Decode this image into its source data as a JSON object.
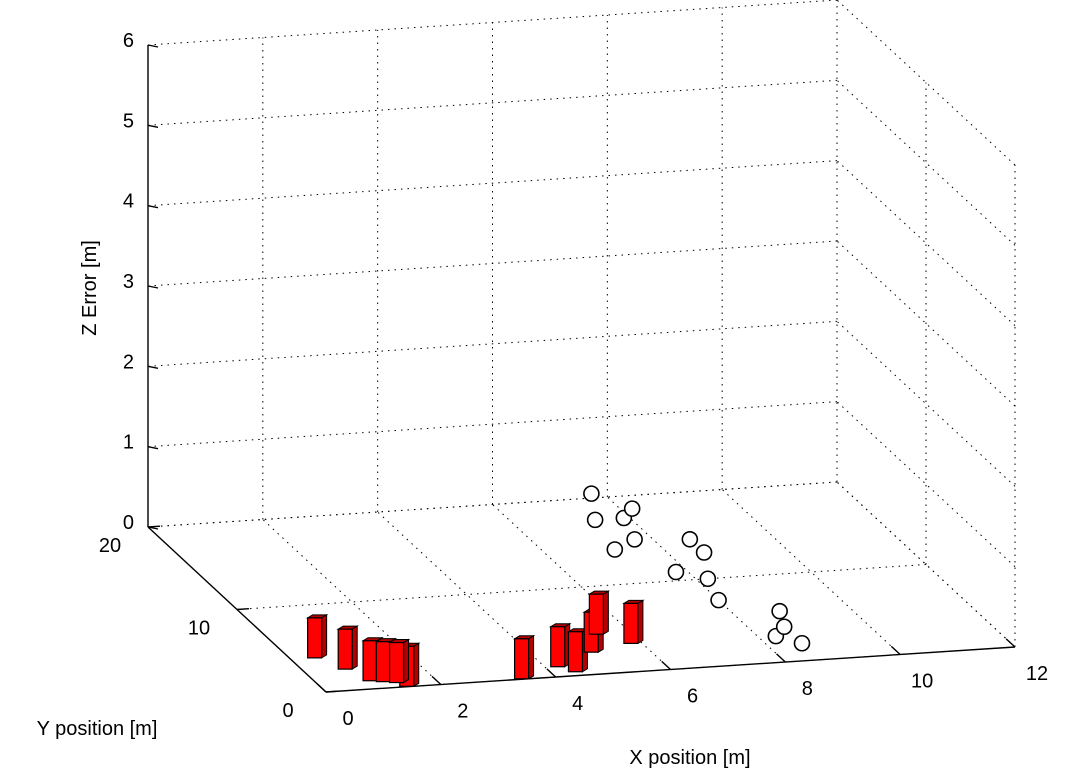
{
  "chart_data": {
    "type": "scatter",
    "view": "3d",
    "xlabel": "X position [m]",
    "ylabel": "Y position [m]",
    "zlabel": "Z Error [m]",
    "xlim": [
      0,
      12
    ],
    "ylim": [
      0,
      20
    ],
    "zlim": [
      0,
      6
    ],
    "x_ticks": [
      "0",
      "2",
      "4",
      "6",
      "8",
      "10",
      "12"
    ],
    "y_ticks": [
      "0",
      "10",
      "20"
    ],
    "z_ticks": [
      "0",
      "1",
      "2",
      "3",
      "4",
      "5",
      "6"
    ],
    "grid": true,
    "colors": {
      "bars": "#ff0000",
      "bars_dark": "#b50000",
      "markers": "#000000"
    },
    "series": [
      {
        "marker": "bar3",
        "points": [
          {
            "x": 0.3,
            "y": 4.0,
            "z": 0
          },
          {
            "x": 0.6,
            "y": 2.5,
            "z": 0
          },
          {
            "x": 0.8,
            "y": 1.0,
            "z": 0
          },
          {
            "x": 1.0,
            "y": 0.8,
            "z": 0
          },
          {
            "x": 1.3,
            "y": 0.1,
            "z": 0
          },
          {
            "x": 1.2,
            "y": 0.6,
            "z": 0
          },
          {
            "x": 3.3,
            "y": 0.1,
            "z": 0
          },
          {
            "x": 4.1,
            "y": 1.2,
            "z": 0
          },
          {
            "x": 4.3,
            "y": 0.5,
            "z": 0
          },
          {
            "x": 4.9,
            "y": 2.6,
            "z": 0
          },
          {
            "x": 5.3,
            "y": 4.6,
            "z": 0
          },
          {
            "x": 5.7,
            "y": 3.3,
            "z": 0
          }
        ]
      },
      {
        "marker": "circle",
        "points": [
          {
            "x": 8.6,
            "y": 2.0,
            "z": 0
          },
          {
            "x": 8.3,
            "y": 3.0,
            "z": 0
          },
          {
            "x": 8.6,
            "y": 4.0,
            "z": 0
          },
          {
            "x": 8.0,
            "y": 7.5,
            "z": 0
          },
          {
            "x": 8.8,
            "y": 5.8,
            "z": 0
          },
          {
            "x": 8.6,
            "y": 13.0,
            "z": 0
          },
          {
            "x": 7.8,
            "y": 11.0,
            "z": 0
          },
          {
            "x": 8.2,
            "y": 10.0,
            "z": 0
          },
          {
            "x": 7.2,
            "y": 14.0,
            "z": 0
          },
          {
            "x": 7.7,
            "y": 15.0,
            "z": 0
          },
          {
            "x": 8.6,
            "y": 14.6,
            "z": 0
          },
          {
            "x": 7.4,
            "y": 17.5,
            "z": 0
          },
          {
            "x": 7.9,
            "y": 17.5,
            "z": 0
          },
          {
            "x": 8.2,
            "y": 18.5,
            "z": 0
          },
          {
            "x": 7.8,
            "y": 20.5,
            "z": 0
          }
        ]
      }
    ]
  }
}
